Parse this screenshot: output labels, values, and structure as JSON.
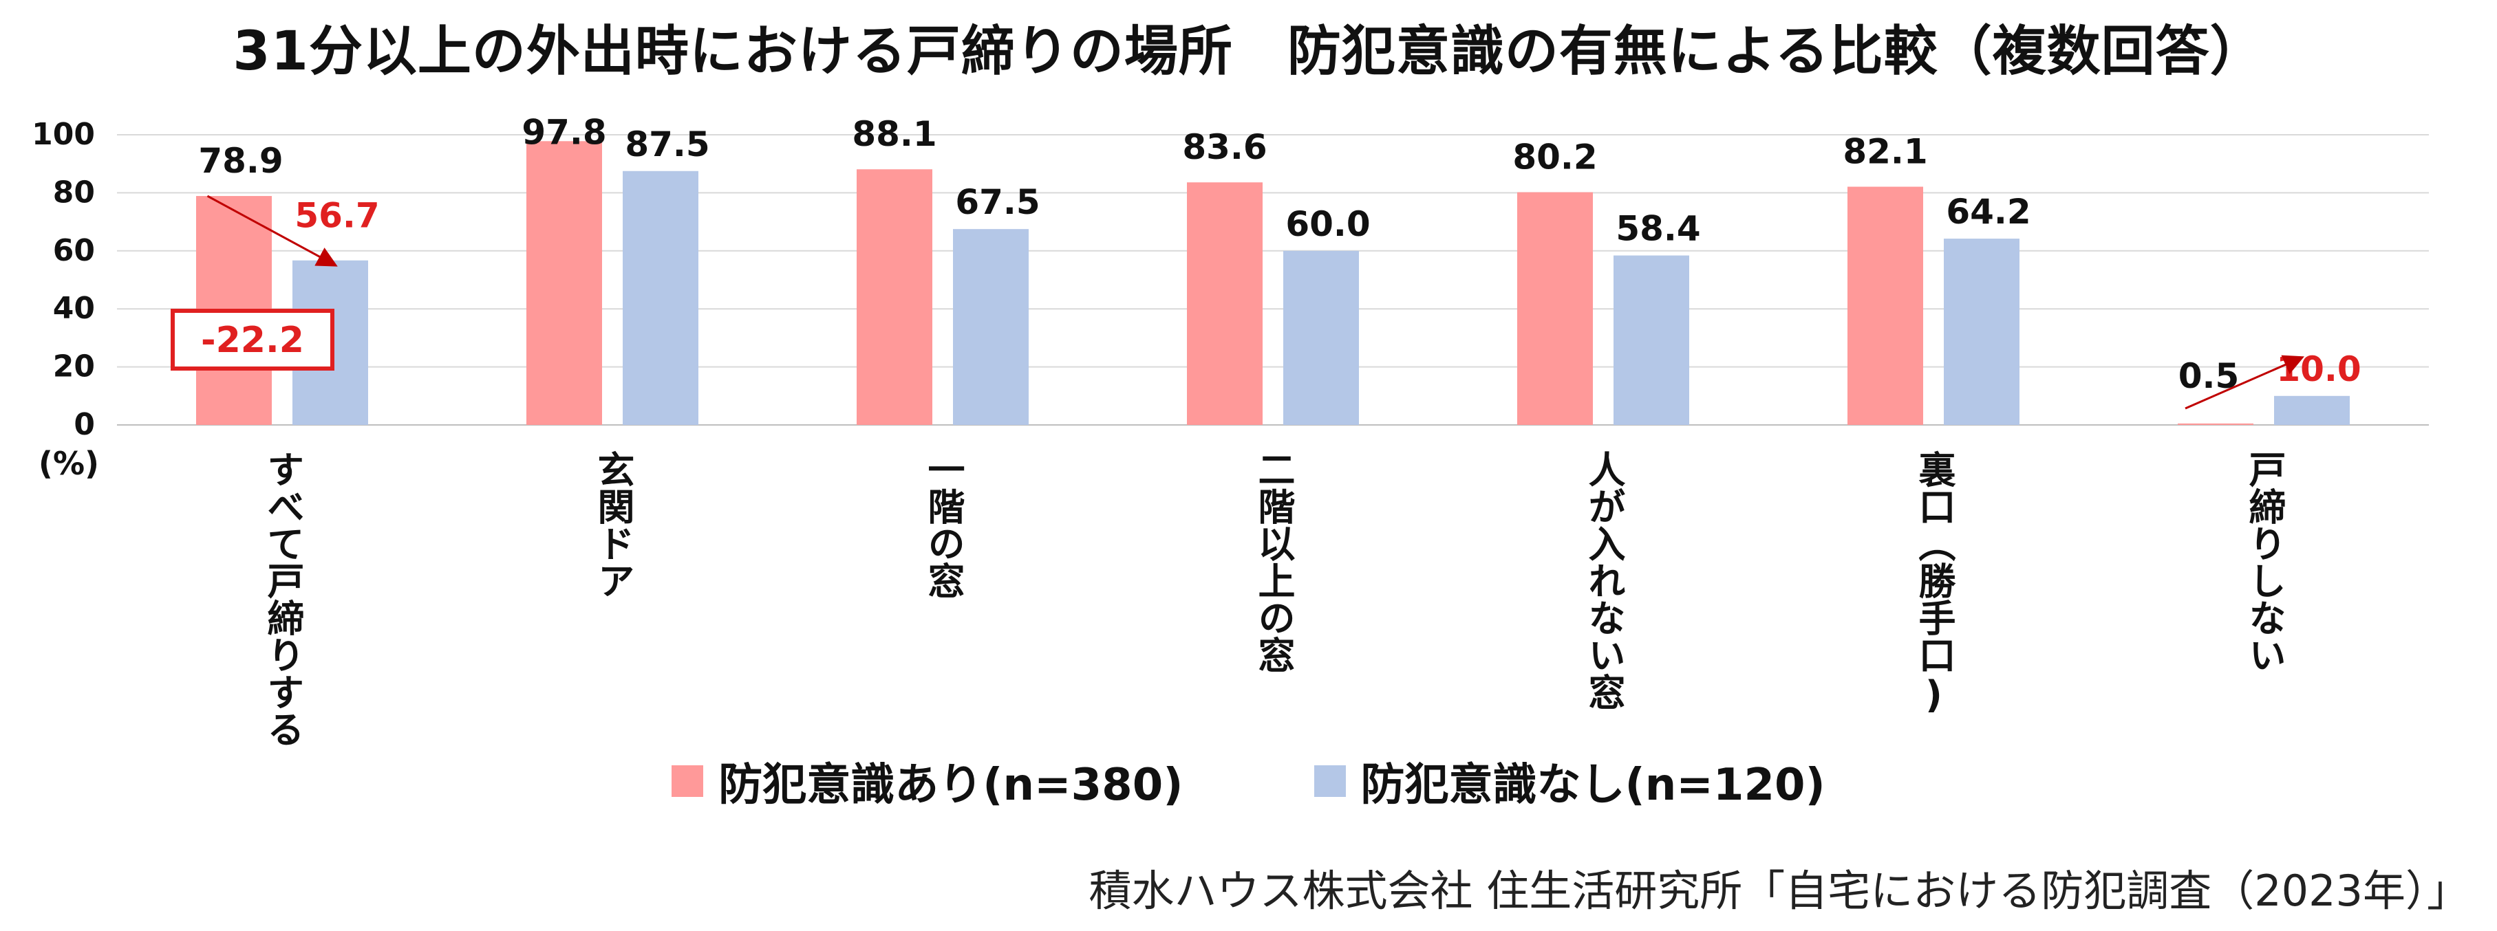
{
  "title": "31分以上の外出時における戸締りの場所　防犯意識の有無による比較（複数回答）",
  "source": "積水ハウス株式会社 住生活研究所「自宅における防犯調査（2023年）」",
  "chart_data": {
    "type": "bar",
    "title": "31分以上の外出時における戸締りの場所　防犯意識の有無による比較（複数回答）",
    "xlabel": "",
    "ylabel": "(%)",
    "ylim": [
      0,
      100
    ],
    "yticks": [
      0,
      20,
      40,
      60,
      80,
      100
    ],
    "grid": true,
    "legend_position": "bottom",
    "categories": [
      "すべて戸締りする",
      "玄関ドア",
      "一階の窓",
      "二階以上の窓",
      "人が入れない窓",
      "裏口（勝手口)",
      "戸締りしない"
    ],
    "series": [
      {
        "name": "防犯意識あり(n=380)",
        "color": "#ff9999",
        "values": [
          78.9,
          97.8,
          88.1,
          83.6,
          80.2,
          82.1,
          0.5
        ],
        "labels": [
          "78.9",
          "97.8",
          "88.1",
          "83.6",
          "80.2",
          "82.1",
          "0.5"
        ]
      },
      {
        "name": "防犯意識なし(n=120)",
        "color": "#b4c7e7",
        "values": [
          56.7,
          87.5,
          67.5,
          60.0,
          58.4,
          64.2,
          10.0
        ],
        "labels": [
          "56.7",
          "87.5",
          "67.5",
          "60.0",
          "58.4",
          "64.2",
          "10.0"
        ]
      }
    ],
    "annotations": [
      {
        "text": "-22.2",
        "category": "すべて戸締りする",
        "style": "boxed",
        "color": "#e02020"
      },
      {
        "text": "",
        "type": "arrow",
        "category": "すべて戸締りする",
        "from_series": "防犯意識あり(n=380)",
        "to_series": "防犯意識なし(n=120)",
        "color": "#c00000"
      },
      {
        "text": "",
        "type": "arrow",
        "category": "戸締りしない",
        "from_series": "防犯意識あり(n=380)",
        "to_series": "防犯意識なし(n=120)",
        "color": "#c00000"
      }
    ],
    "highlight_labels": [
      {
        "series": "防犯意識なし(n=120)",
        "category": "すべて戸締りする",
        "color": "#e02020"
      },
      {
        "series": "防犯意識なし(n=120)",
        "category": "戸締りしない",
        "color": "#e02020"
      }
    ],
    "label_color": "#111111",
    "grid_color": "#d9d9d9"
  }
}
